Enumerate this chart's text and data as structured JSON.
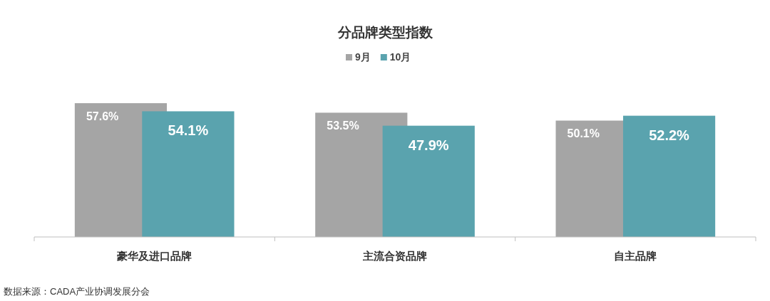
{
  "chart_data": {
    "type": "bar",
    "title": "分品牌类型指数",
    "categories": [
      "豪华及进口品牌",
      "主流合资品牌",
      "自主品牌"
    ],
    "series": [
      {
        "name": "9月",
        "color": "#a5a5a5",
        "values": [
          57.6,
          53.5,
          50.1
        ],
        "value_labels": [
          "57.6%",
          "53.5%",
          "50.1%"
        ]
      },
      {
        "name": "10月",
        "color": "#5aa3ae",
        "values": [
          54.1,
          47.9,
          52.2
        ],
        "value_labels": [
          "54.1%",
          "47.9%",
          "52.2%"
        ]
      }
    ],
    "legend": "top",
    "grid": false,
    "annotations": [
      "数据来源：CADA产业协调发展分会"
    ]
  }
}
